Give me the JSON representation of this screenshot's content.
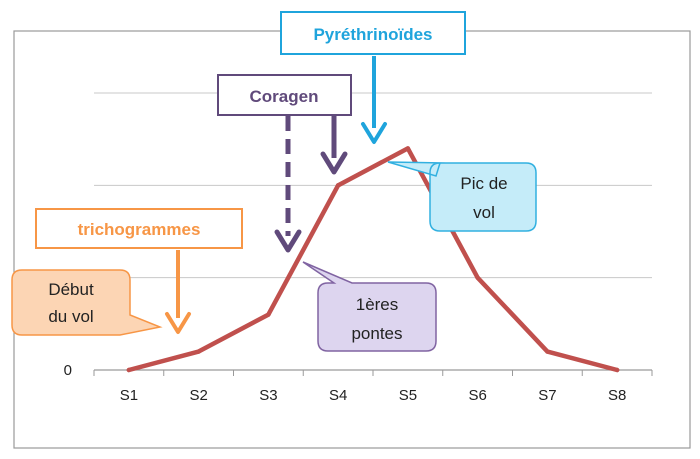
{
  "chart_data": {
    "type": "line",
    "categories": [
      "S1",
      "S2",
      "S3",
      "S4",
      "S5",
      "S6",
      "S7",
      "S8"
    ],
    "series": [
      {
        "values": [
          0,
          0.2,
          0.6,
          2.0,
          2.4,
          1.0,
          0.2,
          0.0
        ],
        "color": "#c0504d"
      }
    ],
    "y_tick_labels": [
      "0"
    ],
    "ylim": [
      0,
      3
    ],
    "grid": true,
    "annotations": {
      "trichogrammes": {
        "label": "trichogrammes",
        "color": "#f79646"
      },
      "coragen": {
        "label": "Coragen",
        "color": "#604a7b"
      },
      "pyrethrinoides": {
        "label": "Pyréthrinoïdes",
        "color": "#1fa4dc"
      },
      "debut_du_vol": {
        "lines": [
          "Début",
          "du vol"
        ],
        "fill": "#fcd5b4",
        "stroke": "#f79646"
      },
      "pic_de_vol": {
        "lines": [
          "Pic de",
          "vol"
        ],
        "fill": "#c5ecf9",
        "stroke": "#31b0e0"
      },
      "premieres_pontes": {
        "lines": [
          "1ères",
          "pontes"
        ],
        "fill": "#ddd5ef",
        "stroke": "#8064a2"
      }
    }
  }
}
